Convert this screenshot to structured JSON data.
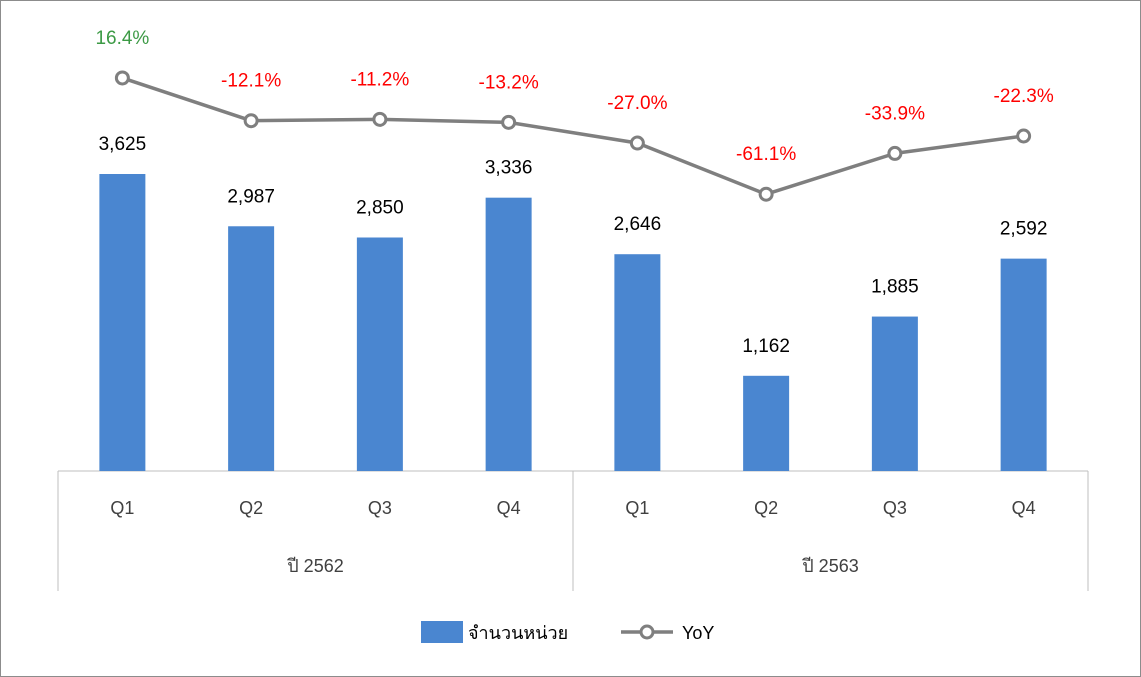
{
  "chart_data": {
    "type": "bar",
    "categories": [
      "Q1",
      "Q2",
      "Q3",
      "Q4",
      "Q1",
      "Q2",
      "Q3",
      "Q4"
    ],
    "groups": [
      {
        "label": "ปี 2562",
        "span": 4
      },
      {
        "label": "ปี 2563",
        "span": 4
      }
    ],
    "series": [
      {
        "name": "จำนวนหน่วย",
        "type": "bar",
        "values": [
          3625,
          2987,
          2850,
          3336,
          2646,
          1162,
          1885,
          2592
        ],
        "labels": [
          "3,625",
          "2,987",
          "2,850",
          "3,336",
          "2,646",
          "1,162",
          "1,885",
          "2,592"
        ],
        "color": "#4a86d0"
      },
      {
        "name": "YoY",
        "type": "line",
        "values": [
          16.4,
          -12.1,
          -11.2,
          -13.2,
          -27.0,
          -61.1,
          -33.9,
          -22.3
        ],
        "labels": [
          "16.4%",
          "-12.1%",
          "-11.2%",
          "-13.2%",
          "-27.0%",
          "-61.1%",
          "-33.9%",
          "-22.3%"
        ],
        "color": "#7f7f7f",
        "label_colors": {
          "positive": "#3c9a45",
          "negative": "#ff0000"
        }
      }
    ],
    "legend_position": "bottom",
    "grid": false
  }
}
